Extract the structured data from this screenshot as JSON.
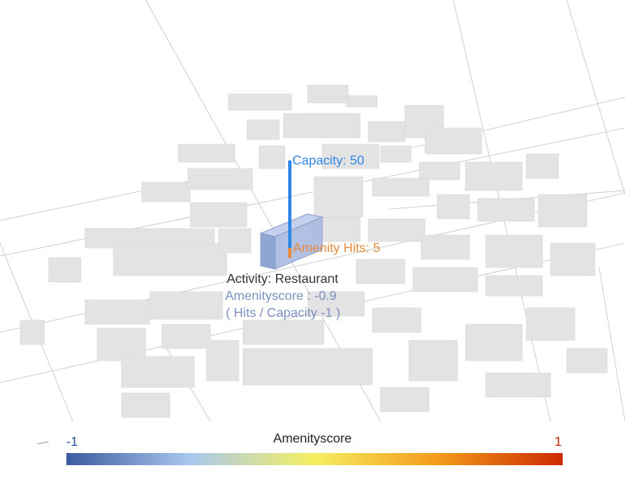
{
  "map": {
    "capacity_label": "Capacity: 50",
    "hits_label": "Amenity Hits: 5",
    "activity_label": "Activity: Restaurant",
    "score_label": "Amenityscore : -0.9",
    "formula_label": "( Hits / Capacity -1 )",
    "capacity": 50,
    "hits": 5,
    "amenityscore": -0.9
  },
  "legend": {
    "title": "Amenityscore",
    "min_label": "-1",
    "max_label": "1",
    "min_color": "#2a4ea0",
    "max_color": "#cc2200",
    "stops": [
      "#3c5a9e",
      "#a9c8ef",
      "#f5ef60",
      "#f39a1a",
      "#cc2a00"
    ]
  },
  "colors": {
    "capacity": "#2e86e6",
    "hits": "#e88a3a",
    "activity": "#333333",
    "score": "#7c8fbf",
    "building": "#e3e3e3",
    "street": "#d2d2d2",
    "selected_block": "#9aaed6"
  }
}
